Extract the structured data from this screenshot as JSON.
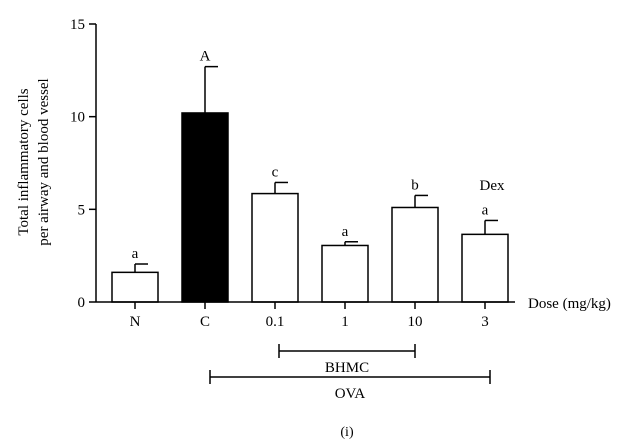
{
  "chart_data": {
    "type": "bar",
    "categories": [
      "N",
      "C",
      "0.1",
      "1",
      "10",
      "3"
    ],
    "values": [
      1.6,
      10.2,
      5.85,
      3.05,
      5.1,
      3.65
    ],
    "errors": [
      0.45,
      2.5,
      0.6,
      0.2,
      0.65,
      0.75
    ],
    "significance": [
      "a",
      "A",
      "c",
      "a",
      "b",
      "a"
    ],
    "fills": [
      "#ffffff",
      "#000000",
      "#ffffff",
      "#ffffff",
      "#ffffff",
      "#ffffff"
    ],
    "annotations": {
      "dex": "Dex"
    },
    "ylabel_line1": "Total inflammatory cells",
    "ylabel_line2": "per airway and blood vessel",
    "xlabel": "Dose (mg/kg)",
    "ylim": [
      0,
      15
    ],
    "yticks": [
      0,
      5,
      10,
      15
    ],
    "groups": {
      "bhmc": "BHMC",
      "ova": "OVA"
    },
    "panel_label": "(i)"
  }
}
